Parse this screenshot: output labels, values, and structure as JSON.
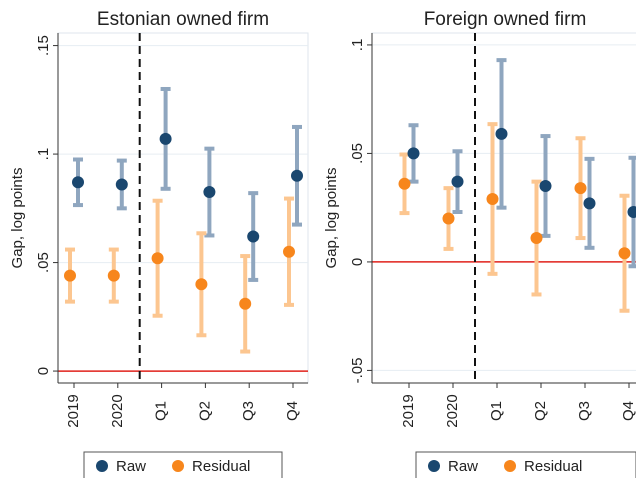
{
  "chart_data": [
    {
      "type": "errorbar",
      "title": "Estonian owned firm",
      "y_label": "Gap, log points",
      "categories": [
        "2019",
        "2020",
        "Q1",
        "Q2",
        "Q3",
        "Q4"
      ],
      "series": [
        {
          "name": "Raw",
          "color": "#1a476f",
          "error_color": "#8fa6bf",
          "values": [
            0.087,
            0.086,
            0.107,
            0.0825,
            0.062,
            0.09
          ],
          "errors": [
            0.0105,
            0.011,
            0.023,
            0.02,
            0.02,
            0.0225
          ]
        },
        {
          "name": "Residual",
          "color": "#f7861c",
          "error_color": "#fcc690",
          "values": [
            0.044,
            0.044,
            0.052,
            0.04,
            0.031,
            0.055
          ],
          "errors": [
            0.012,
            0.012,
            0.0265,
            0.0235,
            0.022,
            0.0245
          ]
        }
      ],
      "ylim": [
        -0.0055,
        0.1558
      ],
      "yticks": [
        0,
        {
          "value": 0.05,
          "label": ".05"
        },
        {
          "value": 0.1,
          "label": ".1"
        },
        {
          "value": 0.15,
          "label": ".15"
        }
      ],
      "hline": 0,
      "grid": true
    },
    {
      "type": "errorbar",
      "title": "Foreign owned firm",
      "y_label": "Gap, log points",
      "categories": [
        "2019",
        "2020",
        "Q1",
        "Q2",
        "Q3",
        "Q4"
      ],
      "series": [
        {
          "name": "Raw",
          "color": "#1a476f",
          "error_color": "#8fa6bf",
          "values": [
            0.05,
            0.037,
            0.059,
            0.035,
            0.027,
            0.023
          ],
          "errors": [
            0.013,
            0.014,
            0.034,
            0.023,
            0.0205,
            0.025
          ]
        },
        {
          "name": "Residual",
          "color": "#f7861c",
          "error_color": "#fcc690",
          "values": [
            0.036,
            0.02,
            0.029,
            0.011,
            0.034,
            0.004
          ],
          "errors": [
            0.0135,
            0.014,
            0.0345,
            0.026,
            0.023,
            0.0265
          ]
        }
      ],
      "ylim": [
        -0.0558,
        0.1055
      ],
      "yticks": [
        {
          "value": -0.05,
          "label": "-.05"
        },
        0,
        {
          "value": 0.05,
          "label": ".05"
        },
        {
          "value": 0.1,
          "label": ".1"
        }
      ],
      "hline": 0,
      "grid": true
    }
  ]
}
